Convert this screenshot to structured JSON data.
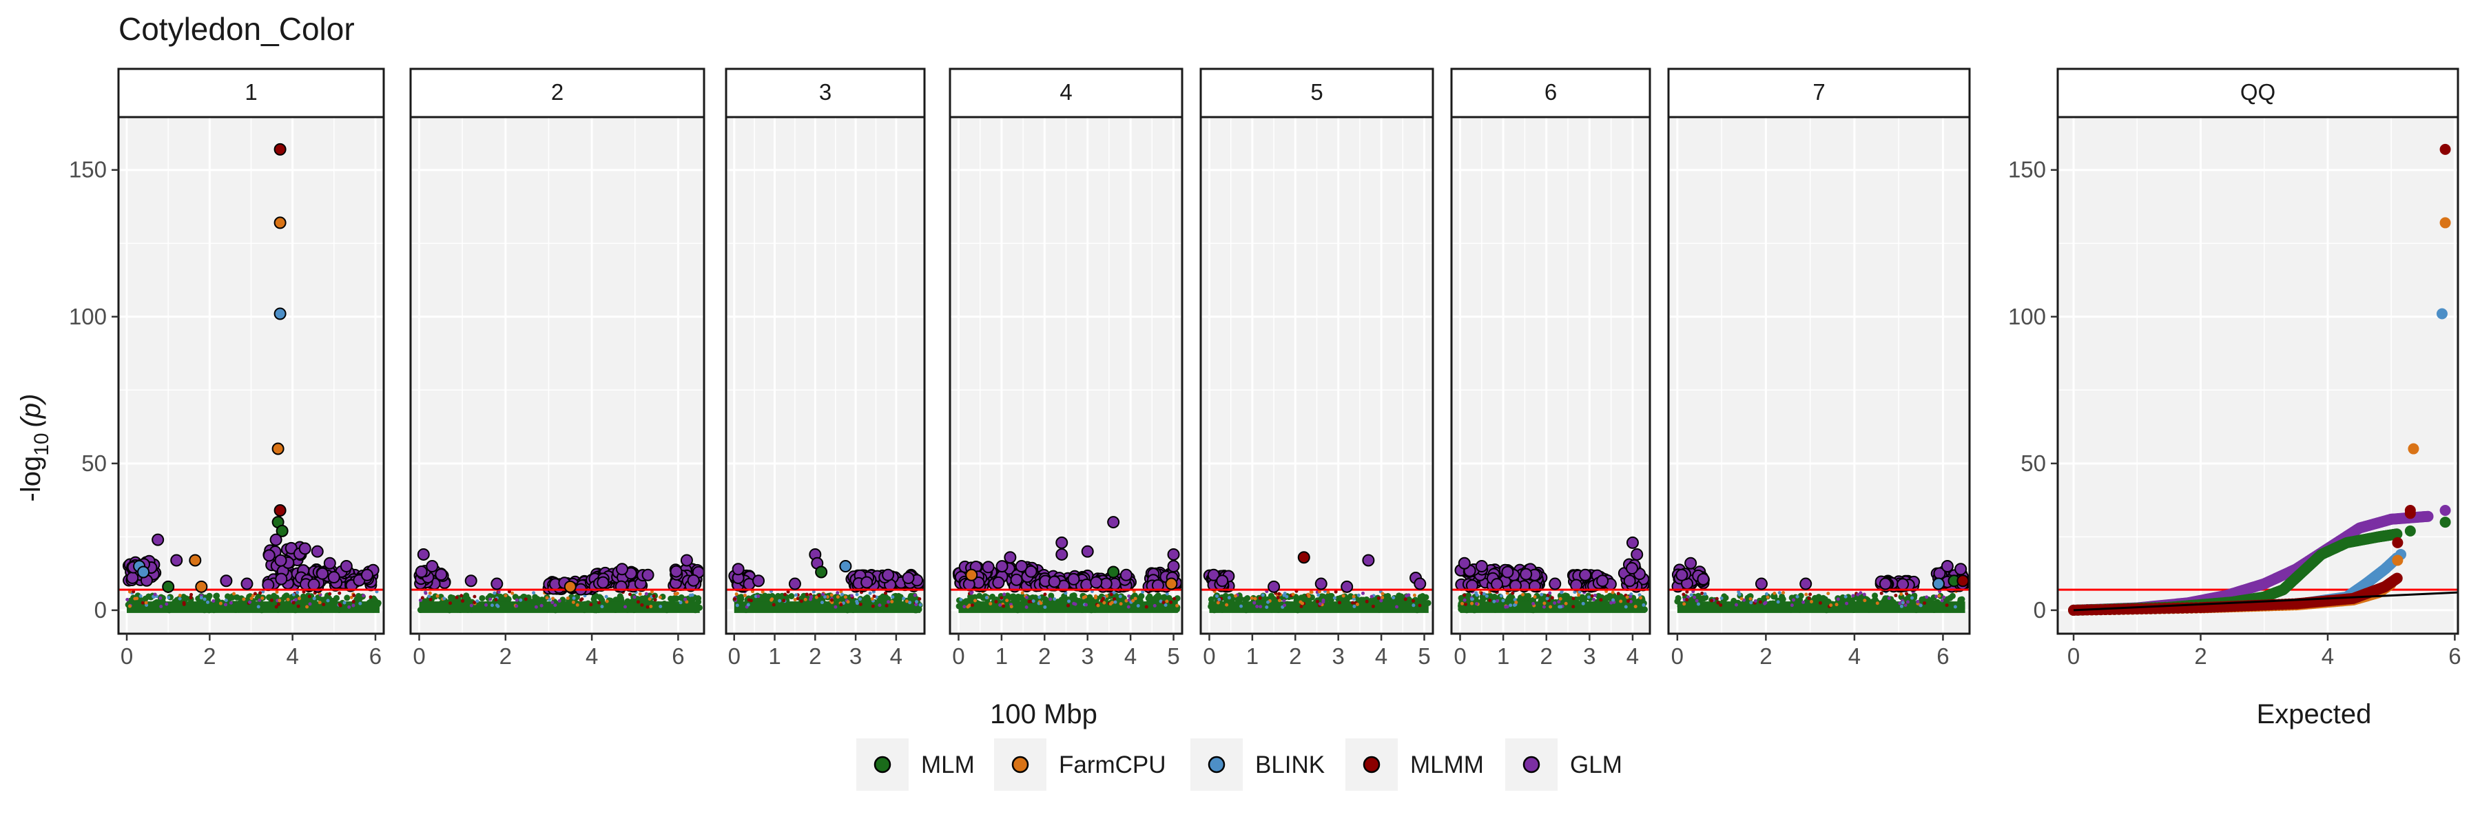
{
  "chart_data": {
    "type": "scatter",
    "title": "Cotyledon_Color",
    "ylabel": "-log",
    "ylabel_sub": "10",
    "ylabel_arg": "(p)",
    "xlabel_manhattan": "100 Mbp",
    "xlabel_qq": "Expected",
    "ylim": [
      -8,
      168
    ],
    "y_ticks": [
      0,
      50,
      100,
      150
    ],
    "threshold": 7,
    "grid": true,
    "legend_position": "bottom",
    "colors": {
      "MLM": "#1a6b1a",
      "FarmCPU": "#d97316",
      "BLINK": "#4d8fc7",
      "MLMM": "#8b0000",
      "GLM": "#7b2fa3",
      "threshold": "#ff0000",
      "panel_bg": "#f2f2f2"
    },
    "legend": [
      "MLM",
      "FarmCPU",
      "BLINK",
      "MLMM",
      "GLM"
    ],
    "panels": [
      {
        "label": "1",
        "xlim": [
          -0.2,
          6.2
        ],
        "x_ticks": [
          0,
          2,
          4,
          6
        ],
        "points": [
          {
            "x": 3.7,
            "y": 157,
            "s": "MLMM"
          },
          {
            "x": 3.7,
            "y": 132,
            "s": "FarmCPU"
          },
          {
            "x": 3.7,
            "y": 101,
            "s": "BLINK"
          },
          {
            "x": 3.65,
            "y": 55,
            "s": "FarmCPU"
          },
          {
            "x": 3.7,
            "y": 34,
            "s": "MLMM"
          },
          {
            "x": 3.65,
            "y": 30,
            "s": "MLM"
          },
          {
            "x": 3.75,
            "y": 27,
            "s": "MLM"
          },
          {
            "x": 3.6,
            "y": 24,
            "s": "GLM"
          },
          {
            "x": 0.75,
            "y": 24,
            "s": "GLM"
          },
          {
            "x": 1.2,
            "y": 17,
            "s": "GLM"
          },
          {
            "x": 1.65,
            "y": 17,
            "s": "FarmCPU"
          },
          {
            "x": 0.3,
            "y": 15,
            "s": "BLINK"
          },
          {
            "x": 0.4,
            "y": 13,
            "s": "BLINK"
          },
          {
            "x": 4.6,
            "y": 20,
            "s": "GLM"
          },
          {
            "x": 4.3,
            "y": 21,
            "s": "GLM"
          },
          {
            "x": 4.9,
            "y": 16,
            "s": "GLM"
          },
          {
            "x": 5.3,
            "y": 15,
            "s": "GLM"
          },
          {
            "x": 2.4,
            "y": 10,
            "s": "GLM"
          },
          {
            "x": 2.9,
            "y": 9,
            "s": "GLM"
          },
          {
            "x": 1.0,
            "y": 8,
            "s": "MLM"
          },
          {
            "x": 1.8,
            "y": 8,
            "s": "FarmCPU"
          },
          {
            "x": 5.8,
            "y": 12,
            "s": "GLM"
          }
        ],
        "bands": [
          [
            0.0,
            0.7,
            10,
            17
          ],
          [
            3.4,
            4.2,
            8,
            22
          ],
          [
            4.2,
            6.0,
            8,
            14
          ]
        ]
      },
      {
        "label": "2",
        "xlim": [
          -0.2,
          6.6
        ],
        "x_ticks": [
          0,
          2,
          4,
          6
        ],
        "points": [
          {
            "x": 0.1,
            "y": 19,
            "s": "GLM"
          },
          {
            "x": 0.3,
            "y": 15,
            "s": "GLM"
          },
          {
            "x": 6.2,
            "y": 17,
            "s": "GLM"
          },
          {
            "x": 4.7,
            "y": 14,
            "s": "GLM"
          },
          {
            "x": 1.2,
            "y": 10,
            "s": "GLM"
          },
          {
            "x": 1.8,
            "y": 9,
            "s": "GLM"
          },
          {
            "x": 3.5,
            "y": 8,
            "s": "FarmCPU"
          },
          {
            "x": 5.3,
            "y": 12,
            "s": "GLM"
          }
        ],
        "bands": [
          [
            0.0,
            0.6,
            8,
            14
          ],
          [
            3.0,
            4.0,
            7,
            10
          ],
          [
            4.0,
            5.2,
            8,
            13
          ],
          [
            5.9,
            6.5,
            8,
            14
          ]
        ]
      },
      {
        "label": "3",
        "xlim": [
          -0.2,
          4.7
        ],
        "x_ticks": [
          0,
          1,
          2,
          3,
          4
        ],
        "points": [
          {
            "x": 2.0,
            "y": 19,
            "s": "GLM"
          },
          {
            "x": 2.05,
            "y": 16,
            "s": "GLM"
          },
          {
            "x": 2.15,
            "y": 13,
            "s": "MLM"
          },
          {
            "x": 2.75,
            "y": 15,
            "s": "BLINK"
          },
          {
            "x": 0.1,
            "y": 14,
            "s": "GLM"
          },
          {
            "x": 0.6,
            "y": 10,
            "s": "GLM"
          },
          {
            "x": 3.8,
            "y": 12,
            "s": "GLM"
          },
          {
            "x": 4.3,
            "y": 11,
            "s": "GLM"
          },
          {
            "x": 1.5,
            "y": 9,
            "s": "GLM"
          }
        ],
        "bands": [
          [
            0.0,
            0.4,
            8,
            12
          ],
          [
            2.9,
            4.6,
            8,
            12
          ]
        ]
      },
      {
        "label": "4",
        "xlim": [
          -0.2,
          5.2
        ],
        "x_ticks": [
          0,
          1,
          2,
          3,
          4,
          5
        ],
        "points": [
          {
            "x": 3.6,
            "y": 30,
            "s": "GLM"
          },
          {
            "x": 2.4,
            "y": 23,
            "s": "GLM"
          },
          {
            "x": 2.4,
            "y": 19,
            "s": "GLM"
          },
          {
            "x": 3.0,
            "y": 20,
            "s": "GLM"
          },
          {
            "x": 3.6,
            "y": 13,
            "s": "MLM"
          },
          {
            "x": 3.9,
            "y": 12,
            "s": "GLM"
          },
          {
            "x": 5.0,
            "y": 19,
            "s": "GLM"
          },
          {
            "x": 5.0,
            "y": 15,
            "s": "GLM"
          },
          {
            "x": 1.2,
            "y": 18,
            "s": "GLM"
          },
          {
            "x": 0.3,
            "y": 12,
            "s": "FarmCPU"
          },
          {
            "x": 4.95,
            "y": 9,
            "s": "FarmCPU"
          }
        ],
        "bands": [
          [
            0.0,
            2.0,
            8,
            15
          ],
          [
            2.0,
            3.0,
            8,
            12
          ],
          [
            3.2,
            4.0,
            8,
            11
          ],
          [
            4.4,
            5.1,
            8,
            13
          ]
        ]
      },
      {
        "label": "5",
        "xlim": [
          -0.2,
          5.2
        ],
        "x_ticks": [
          0,
          1,
          2,
          3,
          4,
          5
        ],
        "points": [
          {
            "x": 2.2,
            "y": 18,
            "s": "MLMM"
          },
          {
            "x": 3.7,
            "y": 17,
            "s": "GLM"
          },
          {
            "x": 0.1,
            "y": 12,
            "s": "GLM"
          },
          {
            "x": 0.3,
            "y": 10,
            "s": "GLM"
          },
          {
            "x": 4.8,
            "y": 11,
            "s": "GLM"
          },
          {
            "x": 4.9,
            "y": 9,
            "s": "GLM"
          },
          {
            "x": 2.6,
            "y": 9,
            "s": "GLM"
          },
          {
            "x": 3.2,
            "y": 8,
            "s": "GLM"
          },
          {
            "x": 1.5,
            "y": 8,
            "s": "GLM"
          }
        ],
        "bands": [
          [
            0.0,
            0.5,
            8,
            12
          ]
        ]
      },
      {
        "label": "6",
        "xlim": [
          -0.2,
          4.4
        ],
        "x_ticks": [
          0,
          1,
          2,
          3,
          4
        ],
        "points": [
          {
            "x": 4.0,
            "y": 23,
            "s": "GLM"
          },
          {
            "x": 4.1,
            "y": 19,
            "s": "GLM"
          },
          {
            "x": 0.1,
            "y": 16,
            "s": "GLM"
          },
          {
            "x": 0.5,
            "y": 15,
            "s": "GLM"
          },
          {
            "x": 1.1,
            "y": 13,
            "s": "GLM"
          },
          {
            "x": 2.9,
            "y": 12,
            "s": "GLM"
          },
          {
            "x": 3.3,
            "y": 10,
            "s": "GLM"
          },
          {
            "x": 2.2,
            "y": 9,
            "s": "GLM"
          }
        ],
        "bands": [
          [
            0.0,
            1.9,
            8,
            14
          ],
          [
            2.6,
            3.5,
            8,
            12
          ],
          [
            3.8,
            4.3,
            8,
            16
          ]
        ]
      },
      {
        "label": "7",
        "xlim": [
          -0.2,
          6.6
        ],
        "x_ticks": [
          0,
          2,
          4,
          6
        ],
        "points": [
          {
            "x": 0.3,
            "y": 16,
            "s": "GLM"
          },
          {
            "x": 0.1,
            "y": 12,
            "s": "GLM"
          },
          {
            "x": 6.1,
            "y": 15,
            "s": "GLM"
          },
          {
            "x": 6.4,
            "y": 14,
            "s": "GLM"
          },
          {
            "x": 5.9,
            "y": 9,
            "s": "BLINK"
          },
          {
            "x": 6.25,
            "y": 10,
            "s": "MLM"
          },
          {
            "x": 2.9,
            "y": 9,
            "s": "GLM"
          },
          {
            "x": 1.9,
            "y": 9,
            "s": "GLM"
          },
          {
            "x": 4.7,
            "y": 9,
            "s": "GLM"
          },
          {
            "x": 6.45,
            "y": 10,
            "s": "MLMM"
          }
        ],
        "bands": [
          [
            0.0,
            0.6,
            8,
            14
          ],
          [
            4.6,
            5.4,
            8,
            10
          ],
          [
            5.8,
            6.5,
            8,
            13
          ]
        ]
      }
    ],
    "qq": {
      "label": "QQ",
      "xlim": [
        -0.25,
        6.05
      ],
      "x_ticks": [
        0,
        2,
        4,
        6
      ],
      "outliers": [
        {
          "x": 5.85,
          "y": 157,
          "s": "MLMM"
        },
        {
          "x": 5.85,
          "y": 132,
          "s": "FarmCPU"
        },
        {
          "x": 5.8,
          "y": 101,
          "s": "BLINK"
        },
        {
          "x": 5.35,
          "y": 55,
          "s": "FarmCPU"
        },
        {
          "x": 5.85,
          "y": 34,
          "s": "GLM"
        },
        {
          "x": 5.3,
          "y": 34,
          "s": "MLMM"
        },
        {
          "x": 5.3,
          "y": 33,
          "s": "MLMM"
        },
        {
          "x": 5.85,
          "y": 30,
          "s": "MLM"
        },
        {
          "x": 5.3,
          "y": 27,
          "s": "MLM"
        },
        {
          "x": 5.1,
          "y": 23,
          "s": "MLMM"
        },
        {
          "x": 5.15,
          "y": 19,
          "s": "BLINK"
        },
        {
          "x": 5.1,
          "y": 17,
          "s": "FarmCPU"
        }
      ],
      "curves": [
        {
          "s": "GLM",
          "pts": [
            [
              0,
              0
            ],
            [
              1,
              0.8
            ],
            [
              1.8,
              2.5
            ],
            [
              2.4,
              5
            ],
            [
              3.0,
              9
            ],
            [
              3.5,
              14
            ],
            [
              4.0,
              21
            ],
            [
              4.5,
              28
            ],
            [
              5.0,
              31
            ],
            [
              5.6,
              32
            ]
          ]
        },
        {
          "s": "MLM",
          "pts": [
            [
              0,
              0
            ],
            [
              1.5,
              1.0
            ],
            [
              2.5,
              2.8
            ],
            [
              3.0,
              4.5
            ],
            [
              3.3,
              7
            ],
            [
              3.55,
              12
            ],
            [
              3.9,
              19
            ],
            [
              4.3,
              23
            ],
            [
              4.8,
              25
            ],
            [
              5.1,
              26
            ]
          ]
        },
        {
          "s": "BLINK",
          "pts": [
            [
              0,
              0
            ],
            [
              2,
              0.8
            ],
            [
              3.5,
              2.0
            ],
            [
              4.3,
              4.5
            ],
            [
              4.6,
              9
            ],
            [
              4.9,
              14
            ],
            [
              5.1,
              18
            ]
          ]
        },
        {
          "s": "FarmCPU",
          "pts": [
            [
              0,
              0
            ],
            [
              2,
              0.8
            ],
            [
              3.5,
              1.8
            ],
            [
              4.4,
              3.5
            ],
            [
              4.8,
              6
            ],
            [
              5.0,
              9
            ]
          ]
        },
        {
          "s": "MLMM",
          "pts": [
            [
              0,
              0
            ],
            [
              2,
              0.9
            ],
            [
              3.5,
              2.2
            ],
            [
              4.4,
              4.0
            ],
            [
              4.9,
              8
            ],
            [
              5.1,
              11
            ]
          ]
        }
      ],
      "reference_line": [
        [
          0,
          0
        ],
        [
          6.05,
          6.05
        ]
      ]
    }
  }
}
